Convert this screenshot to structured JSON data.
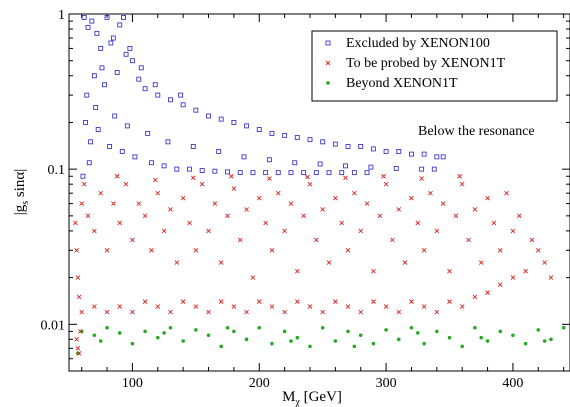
{
  "chart_data": {
    "type": "scatter",
    "xlabel_main": "M",
    "xlabel_sub": "χ",
    "xlabel_unit": "[GeV]",
    "ylabel_main": "|g",
    "ylabel_sub": "s",
    "ylabel_rest": " sinα|",
    "x_ticks": [
      "100",
      "200",
      "300",
      "400"
    ],
    "x_tick_values": [
      100,
      200,
      300,
      400
    ],
    "y_ticks": [
      "0.01",
      "0.1",
      "1"
    ],
    "y_tick_values": [
      0.01,
      0.1,
      1
    ],
    "xlim": [
      50,
      445
    ],
    "ylim": [
      0.005,
      1
    ],
    "y_scale": "log",
    "grid": false,
    "legend_position": "top-right",
    "annotation": "Below the resonance",
    "series": [
      {
        "name": "Excluded by XENON100",
        "color": "#3a3acc",
        "marker": "square",
        "points": [
          [
            62,
            0.95
          ],
          [
            65,
            0.82
          ],
          [
            68,
            0.9
          ],
          [
            72,
            0.75
          ],
          [
            75,
            0.6
          ],
          [
            80,
            0.95
          ],
          [
            85,
            0.7
          ],
          [
            90,
            0.85
          ],
          [
            95,
            0.55
          ],
          [
            100,
            0.5
          ],
          [
            64,
            0.3
          ],
          [
            70,
            0.4
          ],
          [
            78,
            0.35
          ],
          [
            88,
            0.42
          ],
          [
            105,
            0.38
          ],
          [
            110,
            0.33
          ],
          [
            120,
            0.3
          ],
          [
            130,
            0.28
          ],
          [
            140,
            0.26
          ],
          [
            150,
            0.24
          ],
          [
            160,
            0.22
          ],
          [
            170,
            0.21
          ],
          [
            180,
            0.2
          ],
          [
            190,
            0.19
          ],
          [
            200,
            0.18
          ],
          [
            210,
            0.17
          ],
          [
            220,
            0.165
          ],
          [
            230,
            0.16
          ],
          [
            240,
            0.155
          ],
          [
            250,
            0.15
          ],
          [
            260,
            0.145
          ],
          [
            270,
            0.14
          ],
          [
            280,
            0.14
          ],
          [
            290,
            0.135
          ],
          [
            300,
            0.13
          ],
          [
            310,
            0.13
          ],
          [
            320,
            0.125
          ],
          [
            330,
            0.125
          ],
          [
            340,
            0.12
          ],
          [
            345,
            0.12
          ],
          [
            63,
            0.2
          ],
          [
            67,
            0.15
          ],
          [
            73,
            0.18
          ],
          [
            82,
            0.14
          ],
          [
            92,
            0.13
          ],
          [
            102,
            0.12
          ],
          [
            115,
            0.11
          ],
          [
            125,
            0.105
          ],
          [
            135,
            0.1
          ],
          [
            145,
            0.1
          ],
          [
            155,
            0.098
          ],
          [
            165,
            0.097
          ],
          [
            175,
            0.096
          ],
          [
            185,
            0.095
          ],
          [
            195,
            0.095
          ],
          [
            205,
            0.095
          ],
          [
            215,
            0.095
          ],
          [
            225,
            0.095
          ],
          [
            235,
            0.095
          ],
          [
            245,
            0.095
          ],
          [
            255,
            0.095
          ],
          [
            265,
            0.095
          ],
          [
            275,
            0.095
          ],
          [
            285,
            0.095
          ],
          [
            61,
            0.09
          ],
          [
            66,
            0.11
          ],
          [
            71,
            0.25
          ],
          [
            76,
            0.45
          ],
          [
            86,
            0.22
          ],
          [
            96,
            0.19
          ],
          [
            112,
            0.17
          ],
          [
            128,
            0.15
          ],
          [
            148,
            0.14
          ],
          [
            168,
            0.13
          ],
          [
            188,
            0.12
          ],
          [
            208,
            0.115
          ],
          [
            228,
            0.11
          ],
          [
            248,
            0.108
          ],
          [
            268,
            0.105
          ],
          [
            288,
            0.103
          ],
          [
            308,
            0.101
          ],
          [
            328,
            0.1
          ],
          [
            338,
            0.1
          ],
          [
            83,
            0.65
          ],
          [
            93,
            0.95
          ],
          [
            98,
            0.6
          ],
          [
            107,
            0.45
          ],
          [
            118,
            0.35
          ],
          [
            138,
            0.3
          ]
        ]
      },
      {
        "name": "To be probed by XENON1T",
        "color": "#dd2222",
        "marker": "cross",
        "points": [
          [
            55,
            0.045
          ],
          [
            56,
            0.03
          ],
          [
            57,
            0.02
          ],
          [
            58,
            0.015
          ],
          [
            60,
            0.06
          ],
          [
            62,
            0.08
          ],
          [
            65,
            0.05
          ],
          [
            70,
            0.04
          ],
          [
            75,
            0.07
          ],
          [
            80,
            0.03
          ],
          [
            85,
            0.06
          ],
          [
            90,
            0.045
          ],
          [
            95,
            0.08
          ],
          [
            100,
            0.035
          ],
          [
            105,
            0.06
          ],
          [
            110,
            0.05
          ],
          [
            115,
            0.03
          ],
          [
            120,
            0.07
          ],
          [
            125,
            0.04
          ],
          [
            130,
            0.055
          ],
          [
            135,
            0.025
          ],
          [
            140,
            0.065
          ],
          [
            145,
            0.045
          ],
          [
            150,
            0.03
          ],
          [
            155,
            0.08
          ],
          [
            160,
            0.04
          ],
          [
            165,
            0.06
          ],
          [
            170,
            0.025
          ],
          [
            175,
            0.05
          ],
          [
            180,
            0.075
          ],
          [
            185,
            0.035
          ],
          [
            190,
            0.055
          ],
          [
            195,
            0.02
          ],
          [
            200,
            0.065
          ],
          [
            205,
            0.045
          ],
          [
            210,
            0.03
          ],
          [
            215,
            0.07
          ],
          [
            220,
            0.04
          ],
          [
            225,
            0.06
          ],
          [
            230,
            0.022
          ],
          [
            235,
            0.05
          ],
          [
            240,
            0.08
          ],
          [
            245,
            0.035
          ],
          [
            250,
            0.055
          ],
          [
            255,
            0.025
          ],
          [
            260,
            0.065
          ],
          [
            265,
            0.045
          ],
          [
            270,
            0.03
          ],
          [
            275,
            0.07
          ],
          [
            280,
            0.04
          ],
          [
            285,
            0.06
          ],
          [
            290,
            0.022
          ],
          [
            295,
            0.05
          ],
          [
            300,
            0.08
          ],
          [
            305,
            0.035
          ],
          [
            310,
            0.055
          ],
          [
            315,
            0.025
          ],
          [
            320,
            0.065
          ],
          [
            325,
            0.045
          ],
          [
            330,
            0.03
          ],
          [
            335,
            0.07
          ],
          [
            340,
            0.04
          ],
          [
            345,
            0.06
          ],
          [
            350,
            0.022
          ],
          [
            355,
            0.05
          ],
          [
            360,
            0.08
          ],
          [
            365,
            0.035
          ],
          [
            370,
            0.055
          ],
          [
            375,
            0.025
          ],
          [
            380,
            0.065
          ],
          [
            385,
            0.045
          ],
          [
            390,
            0.03
          ],
          [
            395,
            0.07
          ],
          [
            400,
            0.04
          ],
          [
            405,
            0.05
          ],
          [
            410,
            0.022
          ],
          [
            415,
            0.035
          ],
          [
            420,
            0.03
          ],
          [
            425,
            0.025
          ],
          [
            430,
            0.02
          ],
          [
            60,
            0.012
          ],
          [
            70,
            0.013
          ],
          [
            80,
            0.012
          ],
          [
            90,
            0.013
          ],
          [
            100,
            0.012
          ],
          [
            110,
            0.014
          ],
          [
            120,
            0.013
          ],
          [
            130,
            0.012
          ],
          [
            140,
            0.014
          ],
          [
            150,
            0.013
          ],
          [
            160,
            0.012
          ],
          [
            170,
            0.014
          ],
          [
            180,
            0.013
          ],
          [
            190,
            0.012
          ],
          [
            200,
            0.014
          ],
          [
            210,
            0.013
          ],
          [
            220,
            0.012
          ],
          [
            230,
            0.014
          ],
          [
            240,
            0.013
          ],
          [
            250,
            0.012
          ],
          [
            260,
            0.014
          ],
          [
            270,
            0.013
          ],
          [
            280,
            0.012
          ],
          [
            290,
            0.014
          ],
          [
            300,
            0.013
          ],
          [
            310,
            0.012
          ],
          [
            320,
            0.014
          ],
          [
            330,
            0.013
          ],
          [
            340,
            0.012
          ],
          [
            350,
            0.014
          ],
          [
            360,
            0.013
          ],
          [
            370,
            0.015
          ],
          [
            380,
            0.016
          ],
          [
            390,
            0.018
          ],
          [
            400,
            0.02
          ],
          [
            88,
            0.09
          ],
          [
            118,
            0.085
          ],
          [
            148,
            0.088
          ],
          [
            178,
            0.09
          ],
          [
            208,
            0.087
          ],
          [
            238,
            0.089
          ],
          [
            268,
            0.088
          ],
          [
            298,
            0.09
          ],
          [
            328,
            0.087
          ],
          [
            358,
            0.09
          ],
          [
            56,
            0.008
          ],
          [
            57,
            0.007
          ],
          [
            58,
            0.0065
          ],
          [
            59,
            0.009
          ]
        ]
      },
      {
        "name": "Beyond XENON1T",
        "color": "#22aa22",
        "marker": "circle",
        "points": [
          [
            57,
            0.0065
          ],
          [
            60,
            0.009
          ],
          [
            70,
            0.0085
          ],
          [
            80,
            0.0095
          ],
          [
            90,
            0.0088
          ],
          [
            100,
            0.0075
          ],
          [
            110,
            0.009
          ],
          [
            120,
            0.0082
          ],
          [
            130,
            0.0095
          ],
          [
            140,
            0.0078
          ],
          [
            150,
            0.0092
          ],
          [
            160,
            0.0085
          ],
          [
            170,
            0.0072
          ],
          [
            180,
            0.009
          ],
          [
            190,
            0.008
          ],
          [
            200,
            0.0095
          ],
          [
            210,
            0.0075
          ],
          [
            220,
            0.009
          ],
          [
            230,
            0.0082
          ],
          [
            240,
            0.0072
          ],
          [
            250,
            0.0095
          ],
          [
            260,
            0.0078
          ],
          [
            270,
            0.009
          ],
          [
            280,
            0.0085
          ],
          [
            290,
            0.0075
          ],
          [
            300,
            0.0092
          ],
          [
            310,
            0.008
          ],
          [
            320,
            0.0095
          ],
          [
            330,
            0.0075
          ],
          [
            340,
            0.009
          ],
          [
            350,
            0.0082
          ],
          [
            360,
            0.0072
          ],
          [
            370,
            0.0095
          ],
          [
            380,
            0.0078
          ],
          [
            390,
            0.009
          ],
          [
            400,
            0.0085
          ],
          [
            410,
            0.0075
          ],
          [
            420,
            0.0092
          ],
          [
            430,
            0.008
          ],
          [
            440,
            0.0095
          ],
          [
            75,
            0.0078
          ],
          [
            125,
            0.0088
          ],
          [
            175,
            0.0095
          ],
          [
            225,
            0.0078
          ],
          [
            275,
            0.0072
          ],
          [
            325,
            0.0088
          ],
          [
            375,
            0.0082
          ],
          [
            425,
            0.0078
          ]
        ]
      }
    ]
  }
}
